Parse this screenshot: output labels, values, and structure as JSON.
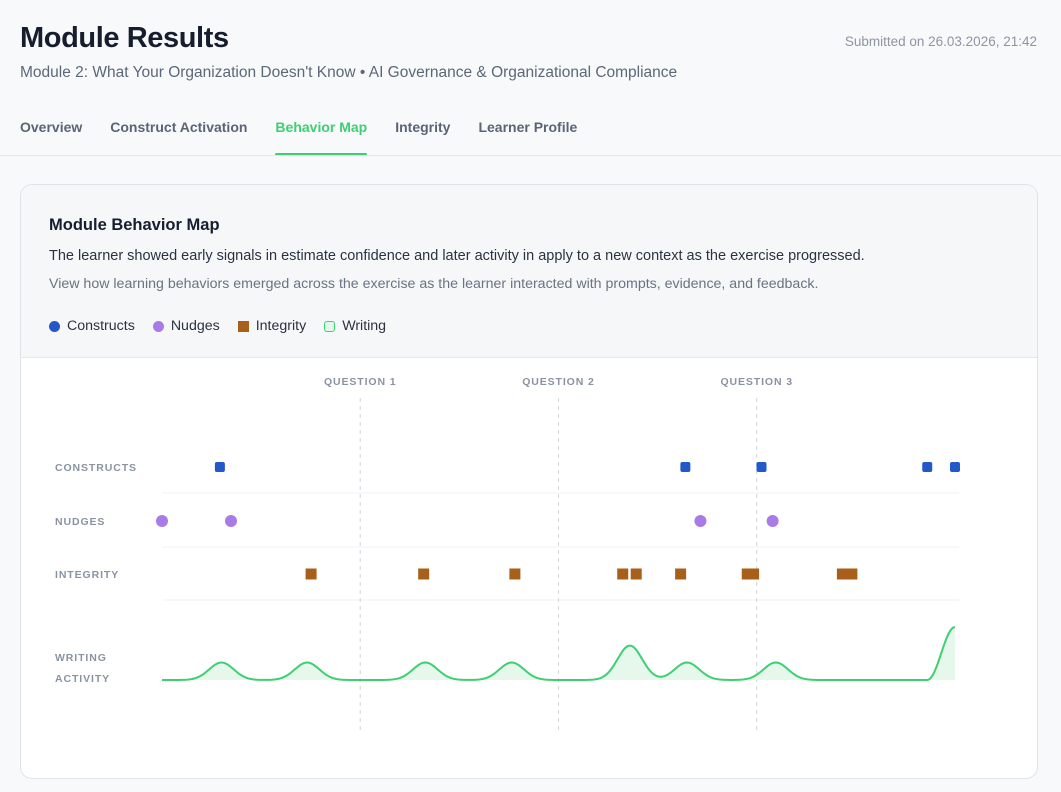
{
  "page": {
    "title": "Module Results",
    "subtitle": "Module 2: What Your Organization Doesn't Know • AI Governance & Organizational Compliance",
    "submitted": "Submitted on 26.03.2026, 21:42"
  },
  "tabs": [
    {
      "label": "Overview",
      "active": false
    },
    {
      "label": "Construct Activation",
      "active": false
    },
    {
      "label": "Behavior Map",
      "active": true
    },
    {
      "label": "Integrity",
      "active": false
    },
    {
      "label": "Learner Profile",
      "active": false
    }
  ],
  "card": {
    "title": "Module Behavior Map",
    "summary": "The learner showed early signals in estimate confidence and later activity in apply to a new context as the exercise progressed.",
    "description": "View how learning behaviors emerged across the exercise as the learner interacted with prompts, evidence, and feedback.",
    "legend": [
      {
        "label": "Constructs",
        "color": "#2358c8",
        "shape": "circle"
      },
      {
        "label": "Nudges",
        "color": "#a97be6",
        "shape": "circle"
      },
      {
        "label": "Integrity",
        "color": "#a85f1a",
        "shape": "square"
      },
      {
        "label": "Writing",
        "color": "#3ecf72",
        "shape": "outline"
      }
    ]
  },
  "colors": {
    "accent": "#3ecf72",
    "constructs": "#2358c8",
    "nudges": "#a97be6",
    "integrity": "#a85f1a",
    "writing": "#3ecf72"
  },
  "chart_data": {
    "type": "scatter",
    "x_range": [
      0,
      100
    ],
    "questions": [
      {
        "label": "QUESTION 1",
        "x": 25
      },
      {
        "label": "QUESTION 2",
        "x": 50
      },
      {
        "label": "QUESTION 3",
        "x": 75
      }
    ],
    "lanes": [
      {
        "key": "constructs",
        "label": "CONSTRUCTS",
        "marker": "rounded-square",
        "events": [
          7.3,
          66.0,
          75.6,
          96.5,
          100
        ]
      },
      {
        "key": "nudges",
        "label": "NUDGES",
        "marker": "circle",
        "events": [
          0,
          8.7,
          67.9,
          77.0
        ]
      },
      {
        "key": "integrity",
        "label": "INTEGRITY",
        "marker": "square",
        "events": [
          18.8,
          33.0,
          44.5,
          58.1,
          59.8,
          65.4,
          73.8,
          74.6,
          85.8,
          87.0
        ]
      },
      {
        "key": "writing",
        "label": "WRITING ACTIVITY",
        "marker": "area",
        "bursts": [
          {
            "x": 7.5,
            "intensity": 0.33
          },
          {
            "x": 18.3,
            "intensity": 0.33
          },
          {
            "x": 33.2,
            "intensity": 0.33
          },
          {
            "x": 44.1,
            "intensity": 0.33
          },
          {
            "x": 59.0,
            "intensity": 0.65
          },
          {
            "x": 66.2,
            "intensity": 0.33
          },
          {
            "x": 77.4,
            "intensity": 0.33
          }
        ],
        "end_ramp": {
          "from_x": 96.5,
          "to_x": 100,
          "intensity": 1.0
        }
      }
    ]
  }
}
